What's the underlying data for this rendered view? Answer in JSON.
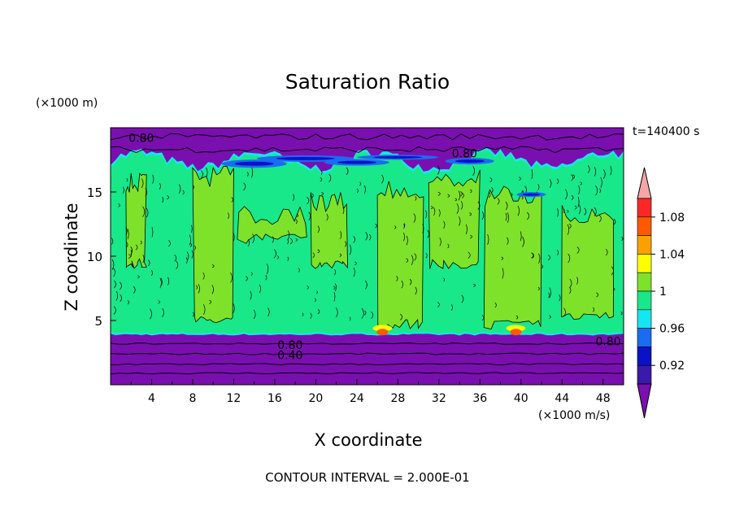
{
  "chart_data": {
    "type": "heatmap",
    "title": "Saturation Ratio",
    "time_label": "t=140400 s",
    "xlabel": "X coordinate",
    "x_unit": "(×1000 m/s)",
    "ylabel": "Z coordinate",
    "y_unit": "(×1000 m)",
    "xlim": [
      0,
      50
    ],
    "ylim": [
      0,
      20
    ],
    "x_ticks": [
      "4",
      "8",
      "12",
      "16",
      "20",
      "24",
      "28",
      "32",
      "36",
      "40",
      "44",
      "48"
    ],
    "y_ticks": [
      "5",
      "10",
      "15"
    ],
    "contour_interval_text": "CONTOUR INTERVAL = 2.000E-01",
    "contour_labels": [
      "0.80",
      "0.80",
      "0.80",
      "0.40",
      "0.80"
    ],
    "colorbar": {
      "levels": [
        0.9,
        0.92,
        0.94,
        0.96,
        0.98,
        1.0,
        1.02,
        1.04,
        1.06,
        1.08,
        1.1
      ],
      "tick_labels": [
        "1.08",
        "1.04",
        "1",
        "0.96",
        "0.92"
      ],
      "colors": [
        "#7a0fb0",
        "#3a1aa8",
        "#0a12c8",
        "#1a6cf0",
        "#16e6f2",
        "#18e88a",
        "#7ee22a",
        "#fefe00",
        "#fca000",
        "#fc5a00",
        "#fc2828",
        "#f4a6a6"
      ]
    },
    "regions": [
      {
        "name": "lower-dry-layer",
        "z_range": [
          0,
          3.9
        ],
        "value": "< 0.90"
      },
      {
        "name": "saturated-layer",
        "z_range": [
          3.9,
          17.5
        ],
        "value": "0.98 to 1.02"
      },
      {
        "name": "upper-dry-layer",
        "z_range": [
          17.5,
          20
        ],
        "value": "< 0.90"
      }
    ]
  }
}
